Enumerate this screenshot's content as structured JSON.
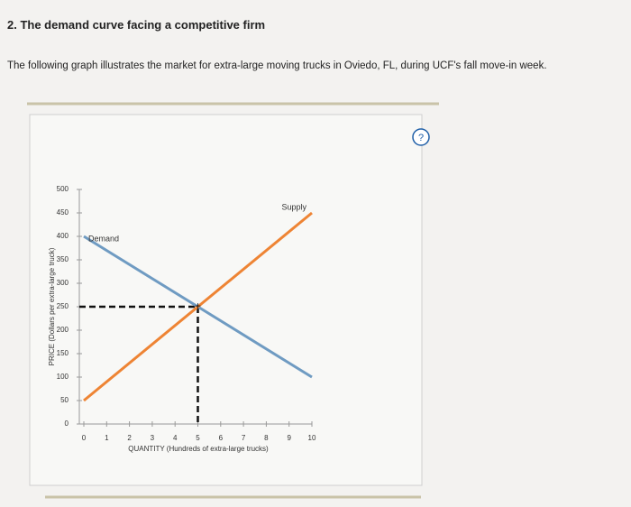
{
  "page": {
    "heading": "2. The demand curve facing a competitive firm",
    "intro": "The following graph illustrates the market for extra-large moving trucks in Oviedo, FL, during UCF's fall move-in week.",
    "help_icon": "?"
  },
  "chart_data": {
    "type": "line",
    "xlabel": "QUANTITY (Hundreds of extra-large trucks)",
    "ylabel": "PRICE (Dollars per extra-large truck)",
    "x": [
      0,
      10
    ],
    "series": [
      {
        "name": "Demand",
        "color": "#6f9bc2",
        "values": [
          400,
          100
        ]
      },
      {
        "name": "Supply",
        "color": "#ee8434",
        "values": [
          50,
          450
        ]
      }
    ],
    "reference_point": {
      "x": 5,
      "y": 250
    },
    "xlim": [
      0,
      10
    ],
    "xticks": [
      0,
      1,
      2,
      3,
      4,
      5,
      6,
      7,
      8,
      9,
      10
    ],
    "ylim": [
      0,
      500
    ],
    "yticks": [
      0,
      50,
      100,
      150,
      200,
      250,
      300,
      350,
      400,
      450,
      500
    ]
  }
}
